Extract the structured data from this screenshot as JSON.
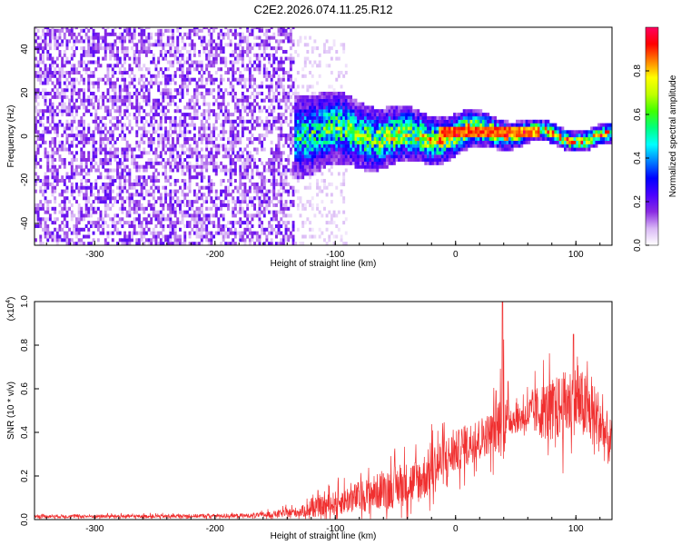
{
  "chart_data": [
    {
      "type": "heatmap",
      "title": "C2E2.2026.074.11.25.R12",
      "xlabel": "Height of straight line (km)",
      "ylabel": "Frequency (Hz)",
      "xlim": [
        -350,
        130
      ],
      "ylim": [
        -50,
        50
      ],
      "xticks": [
        -300,
        -200,
        -100,
        0,
        100
      ],
      "yticks": [
        -40,
        -20,
        0,
        20,
        40
      ],
      "colorbar": {
        "label": "Normalized spectral amplitude",
        "range": [
          0,
          1
        ],
        "ticks": [
          "0.0",
          "0.2",
          "0.4",
          "0.6",
          "0.8"
        ],
        "tick_values": [
          0,
          0.2,
          0.4,
          0.6,
          0.8
        ],
        "colors": [
          "#ffffff",
          "#d9b8f5",
          "#8a2be2",
          "#4b00ff",
          "#0000ff",
          "#0080ff",
          "#00ffff",
          "#00ff80",
          "#40ff00",
          "#c0ff00",
          "#ffff00",
          "#ff8000",
          "#ff0000",
          "#ff0060"
        ]
      },
      "regions": [
        {
          "name": "broadband noise",
          "x": [
            -350,
            -135
          ],
          "freq_span": [
            -50,
            50
          ],
          "amplitude": 0.12
        },
        {
          "name": "diffuse fringe",
          "x": [
            -135,
            -110
          ],
          "freq_span": [
            -50,
            45
          ],
          "amplitude": 0.05
        },
        {
          "name": "signal band",
          "x": [
            -135,
            130
          ],
          "center_freq": 0,
          "half_width": [
            12,
            3
          ],
          "peak_amplitude": 0.95
        }
      ],
      "tone_segments": [
        {
          "x": [
            -15,
            40
          ],
          "freq": 2,
          "amplitude": 0.95
        },
        {
          "x": [
            42,
            68
          ],
          "freq": 2,
          "amplitude": 0.9
        }
      ]
    },
    {
      "type": "line",
      "xlabel": "Height of straight line (km)",
      "ylabel": "SNR (10 * v/v)",
      "scale_label": "(x10",
      "scale_exponent": "4",
      "xlim": [
        -350,
        130
      ],
      "ylim": [
        0,
        1.0
      ],
      "xticks": [
        -300,
        -200,
        -100,
        0,
        100
      ],
      "yticks": [
        "0.0",
        "0.2",
        "0.4",
        "0.6",
        "0.8",
        "1.0"
      ],
      "ytick_values": [
        0,
        0.2,
        0.4,
        0.6,
        0.8,
        1.0
      ],
      "series": [
        {
          "name": "SNR",
          "color": "#f03030",
          "x": [
            -350,
            -250,
            -170,
            -150,
            -130,
            -110,
            -90,
            -70,
            -50,
            -30,
            -15,
            0,
            15,
            30,
            38,
            40,
            42,
            50,
            60,
            70,
            80,
            90,
            100,
            110,
            120,
            125,
            130
          ],
          "y": [
            0.015,
            0.015,
            0.018,
            0.025,
            0.035,
            0.06,
            0.09,
            0.12,
            0.15,
            0.18,
            0.25,
            0.31,
            0.36,
            0.4,
            0.45,
            0.5,
            0.47,
            0.46,
            0.48,
            0.5,
            0.5,
            0.52,
            0.55,
            0.5,
            0.45,
            0.38,
            0.34
          ],
          "spread": [
            0.01,
            0.01,
            0.012,
            0.02,
            0.03,
            0.06,
            0.08,
            0.1,
            0.12,
            0.13,
            0.15,
            0.12,
            0.12,
            0.12,
            0.2,
            0.3,
            0.12,
            0.08,
            0.1,
            0.16,
            0.18,
            0.2,
            0.2,
            0.2,
            0.18,
            0.16,
            0.14
          ],
          "peaks": [
            {
              "x": 39,
              "y": 1.02
            },
            {
              "x": 98,
              "y": 0.85
            }
          ]
        }
      ]
    }
  ]
}
